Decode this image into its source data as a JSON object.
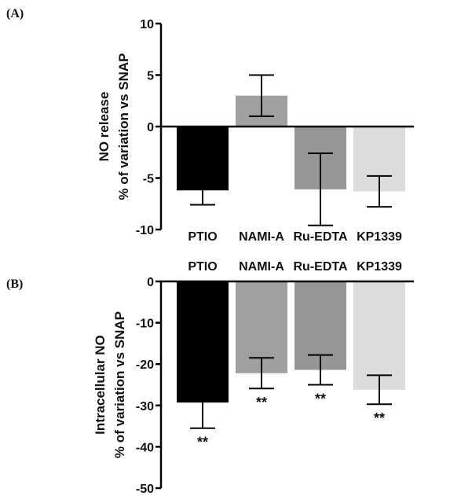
{
  "chart_data": [
    {
      "panel": "(A)",
      "type": "bar",
      "categories": [
        "PTIO",
        "NAMI-A",
        "Ru-EDTA",
        "KP1339"
      ],
      "values": [
        -6.2,
        3.0,
        -6.1,
        -6.3
      ],
      "errors": [
        1.4,
        2.0,
        3.5,
        1.5
      ],
      "colors": [
        "#000000",
        "#a0a0a0",
        "#969696",
        "#dcdcdc"
      ],
      "annotations": [
        "",
        "",
        "",
        ""
      ],
      "ylabel": [
        "NO release",
        "% of variation vs SNAP"
      ],
      "ylim": [
        -10,
        10
      ],
      "yticks": [
        10,
        5,
        0,
        -5,
        -10
      ],
      "category_labels_position": "bottom",
      "grid": false
    },
    {
      "panel": "(B)",
      "type": "bar",
      "categories": [
        "PTIO",
        "NAMI-A",
        "Ru-EDTA",
        "KP1339"
      ],
      "values": [
        -29.3,
        -22.2,
        -21.4,
        -26.2
      ],
      "errors": [
        6.2,
        3.7,
        3.6,
        3.5
      ],
      "colors": [
        "#000000",
        "#a0a0a0",
        "#969696",
        "#dcdcdc"
      ],
      "annotations": [
        "**",
        "**",
        "**",
        "**"
      ],
      "ylabel": [
        "Intracellular NO",
        "% of variation vs SNAP"
      ],
      "ylim": [
        -50,
        0
      ],
      "yticks": [
        0,
        -10,
        -20,
        -30,
        -40,
        -50
      ],
      "category_labels_position": "top",
      "grid": false
    }
  ]
}
